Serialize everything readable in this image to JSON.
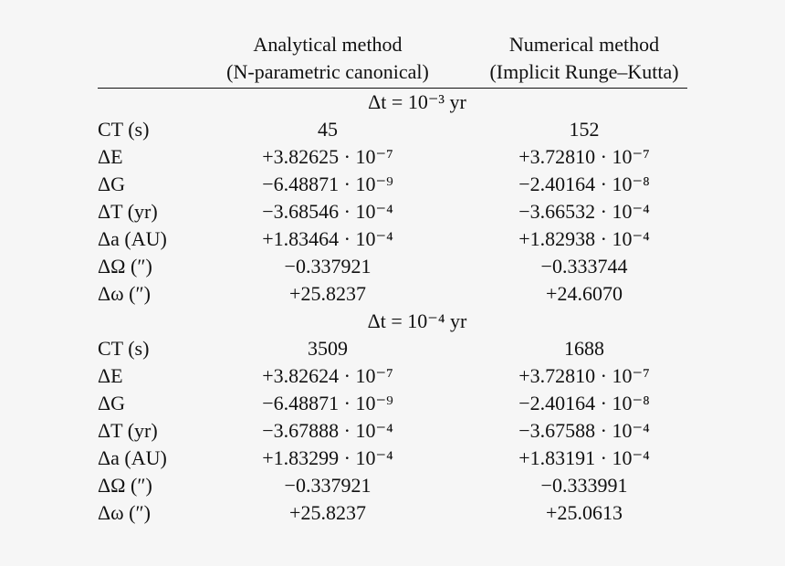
{
  "header": {
    "col_analytical_line1": "Analytical method",
    "col_analytical_line2": "(N-parametric canonical)",
    "col_numerical_line1": "Numerical method",
    "col_numerical_line2": "(Implicit Runge–Kutta)"
  },
  "sections": [
    {
      "title": "Δt = 10⁻³ yr",
      "rows": [
        {
          "label": "CT (s)",
          "analytical": "45",
          "numerical": "152"
        },
        {
          "label": "ΔE",
          "analytical": "+3.82625 · 10⁻⁷",
          "numerical": "+3.72810 · 10⁻⁷"
        },
        {
          "label": "ΔG",
          "analytical": "−6.48871 · 10⁻⁹",
          "numerical": "−2.40164 · 10⁻⁸"
        },
        {
          "label": "ΔT (yr)",
          "analytical": "−3.68546 · 10⁻⁴",
          "numerical": "−3.66532 · 10⁻⁴"
        },
        {
          "label": "Δa (AU)",
          "analytical": "+1.83464 · 10⁻⁴",
          "numerical": "+1.82938 · 10⁻⁴"
        },
        {
          "label": "ΔΩ (″)",
          "analytical": "−0.337921",
          "numerical": "−0.333744"
        },
        {
          "label": "Δω (″)",
          "analytical": "+25.8237",
          "numerical": "+24.6070"
        }
      ]
    },
    {
      "title": "Δt = 10⁻⁴ yr",
      "rows": [
        {
          "label": "CT (s)",
          "analytical": "3509",
          "numerical": "1688"
        },
        {
          "label": "ΔE",
          "analytical": "+3.82624 · 10⁻⁷",
          "numerical": "+3.72810 · 10⁻⁷"
        },
        {
          "label": "ΔG",
          "analytical": "−6.48871 · 10⁻⁹",
          "numerical": "−2.40164 · 10⁻⁸"
        },
        {
          "label": "ΔT (yr)",
          "analytical": "−3.67888 · 10⁻⁴",
          "numerical": "−3.67588 · 10⁻⁴"
        },
        {
          "label": "Δa (AU)",
          "analytical": "+1.83299 · 10⁻⁴",
          "numerical": "+1.83191 · 10⁻⁴"
        },
        {
          "label": "ΔΩ (″)",
          "analytical": "−0.337921",
          "numerical": "−0.333991"
        },
        {
          "label": "Δω (″)",
          "analytical": "+25.8237",
          "numerical": "+25.0613"
        }
      ]
    }
  ]
}
